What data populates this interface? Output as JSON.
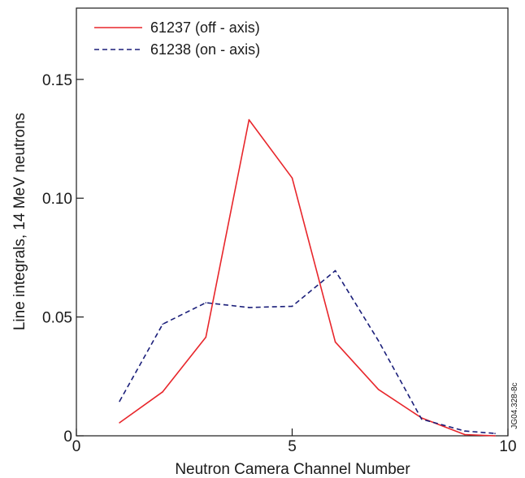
{
  "chart_data": {
    "type": "line",
    "xlabel": "Neutron Camera Channel Number",
    "ylabel": "Line integrals, 14 MeV neutrons",
    "xlim": [
      0,
      10
    ],
    "ylim": [
      0,
      0.18
    ],
    "xticks": [
      0,
      5,
      10
    ],
    "xtick_labels": [
      "0",
      "5",
      "10"
    ],
    "yticks": [
      0,
      0.05,
      0.1,
      0.15
    ],
    "ytick_labels": [
      "0",
      "0.05",
      "0.10",
      "0.15"
    ],
    "grid": false,
    "legend_position": "top-left",
    "series": [
      {
        "name": "61237 (off - axis)",
        "color": "#e8262b",
        "style": "solid",
        "x": [
          1,
          2,
          3,
          4,
          5,
          6,
          7,
          8,
          9,
          9.7
        ],
        "y": [
          0.0055,
          0.0185,
          0.0415,
          0.133,
          0.1085,
          0.0395,
          0.0195,
          0.0075,
          0.0005,
          0.0
        ]
      },
      {
        "name": "61238 (on - axis)",
        "color": "#1b1f7a",
        "style": "dashed",
        "x": [
          1,
          2,
          3,
          4,
          5,
          6,
          7,
          8,
          9,
          9.7
        ],
        "y": [
          0.0145,
          0.047,
          0.056,
          0.054,
          0.0545,
          0.0695,
          0.04,
          0.007,
          0.002,
          0.001
        ]
      }
    ]
  },
  "side_note": "JG04.328-8c"
}
